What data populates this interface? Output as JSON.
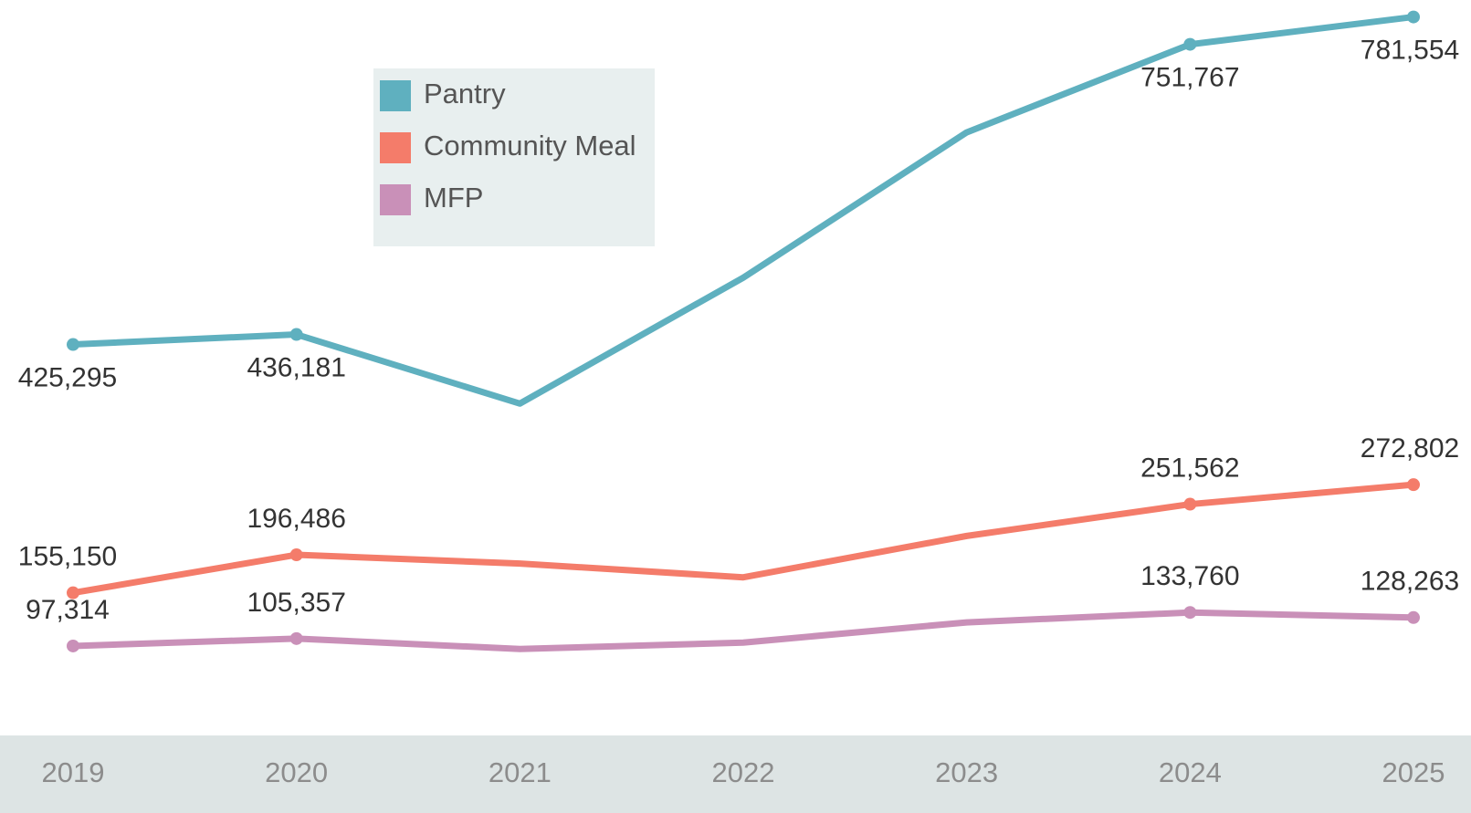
{
  "chart_data": {
    "type": "line",
    "categories": [
      "2019",
      "2020",
      "2021",
      "2022",
      "2023",
      "2024",
      "2025"
    ],
    "series": [
      {
        "name": "Pantry",
        "color": "#5fb0bf",
        "values": [
          425295,
          436181,
          361000,
          498000,
          656000,
          751767,
          781554
        ],
        "value_labels": [
          "425,295",
          "436,181",
          null,
          null,
          null,
          "751,767",
          "781,554"
        ]
      },
      {
        "name": "Community Meal",
        "color": "#f47c6a",
        "values": [
          155150,
          196486,
          187000,
          172000,
          217000,
          251562,
          272802
        ],
        "value_labels": [
          "155,150",
          "196,486",
          null,
          null,
          null,
          "251,562",
          "272,802"
        ]
      },
      {
        "name": "MFP",
        "color": "#c990b8",
        "values": [
          97314,
          105357,
          94000,
          101000,
          123000,
          133760,
          128263
        ],
        "value_labels": [
          "97,314",
          "105,357",
          null,
          null,
          null,
          "133,760",
          "128,263"
        ]
      }
    ],
    "ylim": [
      0,
      800000
    ],
    "legend": "top-left"
  }
}
